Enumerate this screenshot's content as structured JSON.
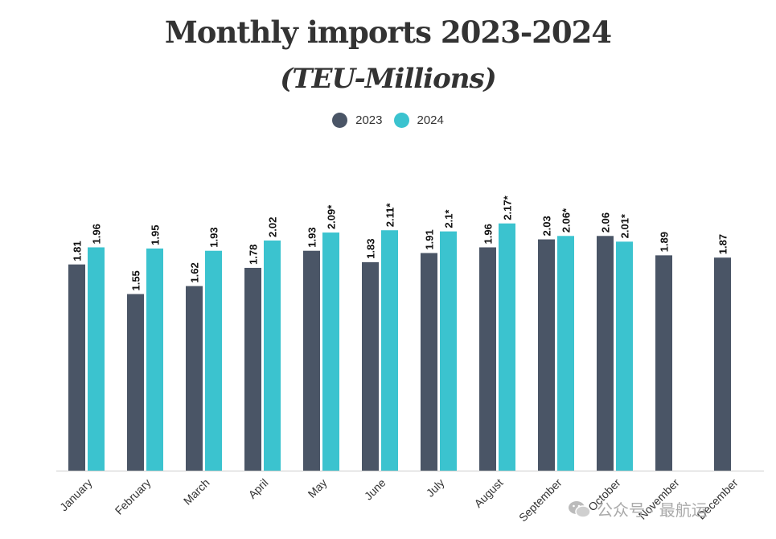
{
  "chart_data": {
    "type": "bar",
    "title": "Monthly imports 2023-2024",
    "subtitle": "(TEU-Millions)",
    "legend_position": "top-center",
    "grid": false,
    "ylim": [
      0,
      2.5
    ],
    "categories": [
      "January",
      "February",
      "March",
      "April",
      "May",
      "June",
      "July",
      "August",
      "September",
      "October",
      "November",
      "December"
    ],
    "series": [
      {
        "name": "2023",
        "color": "#4a5566",
        "values": [
          1.81,
          1.55,
          1.62,
          1.78,
          1.93,
          1.83,
          1.91,
          1.96,
          2.03,
          2.06,
          1.89,
          1.87
        ],
        "labels": [
          "1.81",
          "1.55",
          "1.62",
          "1.78",
          "1.93",
          "1.83",
          "1.91",
          "1.96",
          "2.03",
          "2.06",
          "1.89",
          "1.87"
        ]
      },
      {
        "name": "2024",
        "color": "#3bc3cf",
        "values": [
          1.96,
          1.95,
          1.93,
          2.02,
          2.09,
          2.11,
          2.1,
          2.17,
          2.06,
          2.01,
          null,
          null
        ],
        "labels": [
          "1.96",
          "1.95",
          "1.93",
          "2.02",
          "2.09*",
          "2.11*",
          "2.1*",
          "2.17*",
          "2.06*",
          "2.01*",
          "",
          ""
        ]
      }
    ]
  },
  "watermark": {
    "icon": "wechat-icon",
    "text": "公众号 · 最航运"
  }
}
